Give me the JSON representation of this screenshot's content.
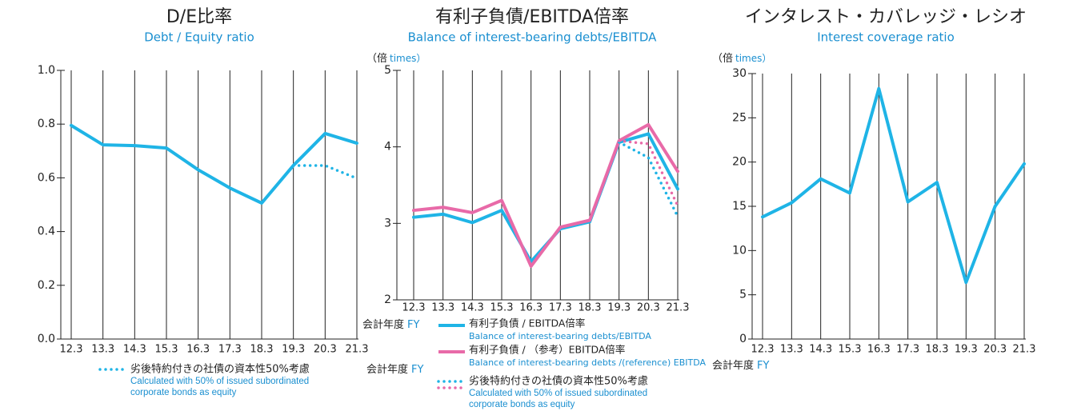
{
  "chart_data": [
    {
      "type": "line",
      "title": "D/E比率",
      "subtitle": "Debt / Equity ratio",
      "categories": [
        "12.3",
        "13.3",
        "14.3",
        "15.3",
        "16.3",
        "17.3",
        "18.3",
        "19.3",
        "20.3",
        "21.3"
      ],
      "series": [
        {
          "color": "#1fb4e6",
          "style": "solid",
          "values": [
            0.795,
            0.723,
            0.72,
            0.711,
            0.63,
            0.562,
            0.506,
            0.646,
            0.765,
            0.729
          ]
        },
        {
          "color": "#1fb4e6",
          "style": "dotted",
          "values": [
            null,
            null,
            null,
            null,
            null,
            null,
            null,
            0.646,
            0.646,
            0.598
          ]
        }
      ],
      "ylim": [
        0,
        1
      ],
      "yticks": [
        {
          "value": 0,
          "label": "0.0"
        },
        0.2,
        0.4,
        0.6,
        0.8,
        {
          "value": 1,
          "label": "1.0"
        }
      ],
      "x_label": "会計年度",
      "x_label_en": "FY",
      "note": {
        "label": "劣後特約付きの社債の資本性50%考慮",
        "label_en": "Calculated with 50% of issued subordinated corporate bonds as equity"
      }
    },
    {
      "type": "line",
      "title": "有利子負債/EBITDA倍率",
      "subtitle": "Balance of interest-bearing debts/EBITDA",
      "unit": "（倍",
      "unit_en": "times）",
      "categories": [
        "12.3",
        "13.3",
        "14.3",
        "15.3",
        "16.3",
        "17.3",
        "18.3",
        "19.3",
        "20.3",
        "21.3"
      ],
      "series": [
        {
          "name": "有利子負債 / EBITDA倍率",
          "name_en": "Balance of interest-bearing debts/EBITDA",
          "color": "#1fb4e6",
          "style": "solid",
          "values": [
            3.08,
            3.12,
            3.01,
            3.17,
            2.5,
            2.93,
            3.02,
            4.06,
            4.17,
            3.45
          ]
        },
        {
          "name": "有利子負債 / （参考）EBITDA倍率",
          "name_en": "Balance of interest-bearing debts /(reference) EBITDA",
          "color": "#e86aa8",
          "style": "solid",
          "values": [
            3.17,
            3.21,
            3.14,
            3.3,
            2.44,
            2.95,
            3.04,
            4.08,
            4.29,
            3.68
          ]
        },
        {
          "color": "#1fb4e6",
          "style": "dotted",
          "values": [
            null,
            null,
            null,
            null,
            null,
            null,
            null,
            4.06,
            3.86,
            3.09
          ]
        },
        {
          "color": "#e86aa8",
          "style": "dotted",
          "values": [
            null,
            null,
            null,
            null,
            null,
            null,
            null,
            4.08,
            4.04,
            3.23
          ]
        }
      ],
      "ylim": [
        2,
        5
      ],
      "yticks": [
        2,
        3,
        4,
        5
      ],
      "x_label": "会計年度",
      "x_label_en": "FY",
      "note": {
        "label": "劣後特約付きの社債の資本性50%考慮",
        "label_en": "Calculated with 50% of issued subordinated corporate bonds as equity"
      }
    },
    {
      "type": "line",
      "title": "インタレスト・カバレッジ・レシオ",
      "subtitle": "Interest coverage ratio",
      "unit": "（倍",
      "unit_en": "times）",
      "categories": [
        "12.3",
        "13.3",
        "14.3",
        "15.3",
        "16.3",
        "17.3",
        "18.3",
        "19.3",
        "20.3",
        "21.3"
      ],
      "series": [
        {
          "color": "#1fb4e6",
          "style": "solid",
          "values": [
            13.8,
            15.4,
            18.1,
            16.5,
            28.3,
            15.5,
            17.7,
            6.4,
            15.0,
            19.8
          ]
        }
      ],
      "ylim": [
        0,
        30
      ],
      "yticks": [
        0,
        5,
        10,
        15,
        20,
        25,
        30
      ],
      "x_label": "会計年度",
      "x_label_en": "FY"
    }
  ]
}
